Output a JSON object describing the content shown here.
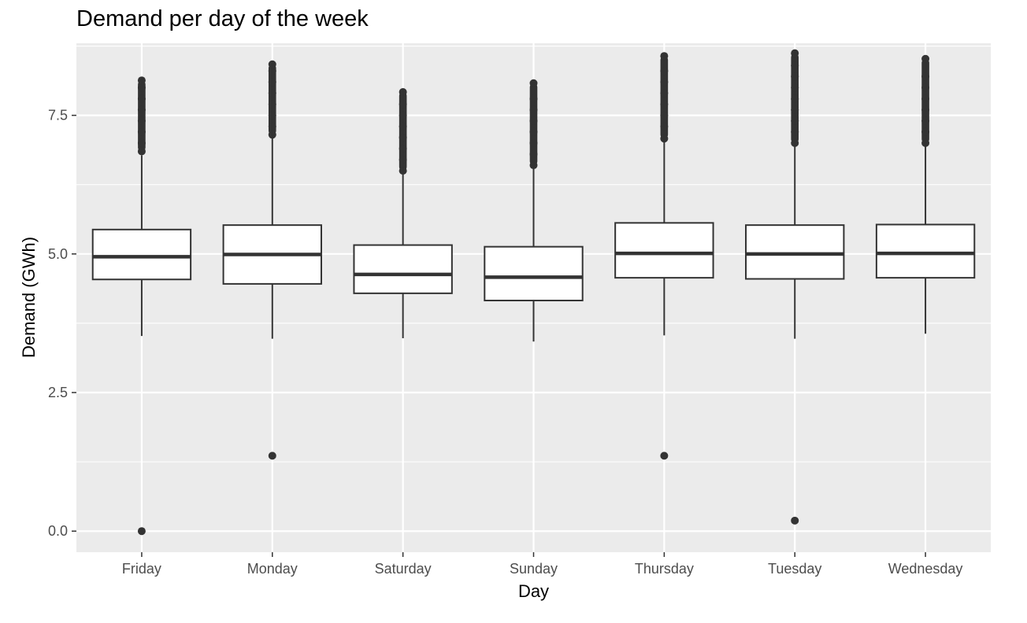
{
  "chart_data": {
    "type": "box",
    "title": "Demand per day of the week",
    "xlabel": "Day",
    "ylabel": "Demand (GWh)",
    "ylim": [
      -0.38,
      8.8
    ],
    "y_ticks": [
      0.0,
      2.5,
      5.0,
      7.5
    ],
    "y_tick_labels": [
      "0.0",
      "2.5",
      "5.0",
      "7.5"
    ],
    "grid": true,
    "colors": {
      "panel": "#ebebeb",
      "grid": "#ffffff",
      "box_fill": "#ffffff",
      "box_line": "#333333",
      "point": "#333333",
      "tick_text": "#4d4d4d"
    },
    "categories": [
      "Friday",
      "Monday",
      "Saturday",
      "Sunday",
      "Thursday",
      "Tuesday",
      "Wednesday"
    ],
    "boxes": [
      {
        "category": "Friday",
        "whisker_low": 3.52,
        "q1": 4.54,
        "median": 4.95,
        "q3": 5.44,
        "whisker_high": 6.78,
        "outliers_high": [
          6.85,
          7.0,
          7.2,
          7.4,
          7.6,
          7.8,
          8.0,
          8.13
        ],
        "outliers_low": [
          0.0
        ]
      },
      {
        "category": "Monday",
        "whisker_low": 3.47,
        "q1": 4.46,
        "median": 4.99,
        "q3": 5.52,
        "whisker_high": 7.1,
        "outliers_high": [
          7.15,
          7.3,
          7.5,
          7.7,
          7.9,
          8.1,
          8.3,
          8.42
        ],
        "outliers_low": [
          1.36
        ]
      },
      {
        "category": "Saturday",
        "whisker_low": 3.48,
        "q1": 4.29,
        "median": 4.63,
        "q3": 5.16,
        "whisker_high": 6.45,
        "outliers_high": [
          6.5,
          6.7,
          6.9,
          7.1,
          7.3,
          7.5,
          7.7,
          7.92
        ],
        "outliers_low": []
      },
      {
        "category": "Sunday",
        "whisker_low": 3.42,
        "q1": 4.16,
        "median": 4.58,
        "q3": 5.13,
        "whisker_high": 6.55,
        "outliers_high": [
          6.6,
          6.8,
          7.0,
          7.2,
          7.4,
          7.6,
          7.8,
          8.08
        ],
        "outliers_low": []
      },
      {
        "category": "Thursday",
        "whisker_low": 3.53,
        "q1": 4.57,
        "median": 5.01,
        "q3": 5.56,
        "whisker_high": 7.02,
        "outliers_high": [
          7.08,
          7.3,
          7.5,
          7.7,
          7.9,
          8.1,
          8.3,
          8.57
        ],
        "outliers_low": [
          1.36
        ]
      },
      {
        "category": "Tuesday",
        "whisker_low": 3.47,
        "q1": 4.55,
        "median": 5.0,
        "q3": 5.52,
        "whisker_high": 6.96,
        "outliers_high": [
          7.0,
          7.2,
          7.4,
          7.6,
          7.8,
          8.0,
          8.2,
          8.4,
          8.62
        ],
        "outliers_low": [
          0.19
        ]
      },
      {
        "category": "Wednesday",
        "whisker_low": 3.56,
        "q1": 4.57,
        "median": 5.01,
        "q3": 5.53,
        "whisker_high": 6.96,
        "outliers_high": [
          7.0,
          7.2,
          7.4,
          7.6,
          7.8,
          8.0,
          8.2,
          8.52
        ],
        "outliers_low": []
      }
    ]
  }
}
